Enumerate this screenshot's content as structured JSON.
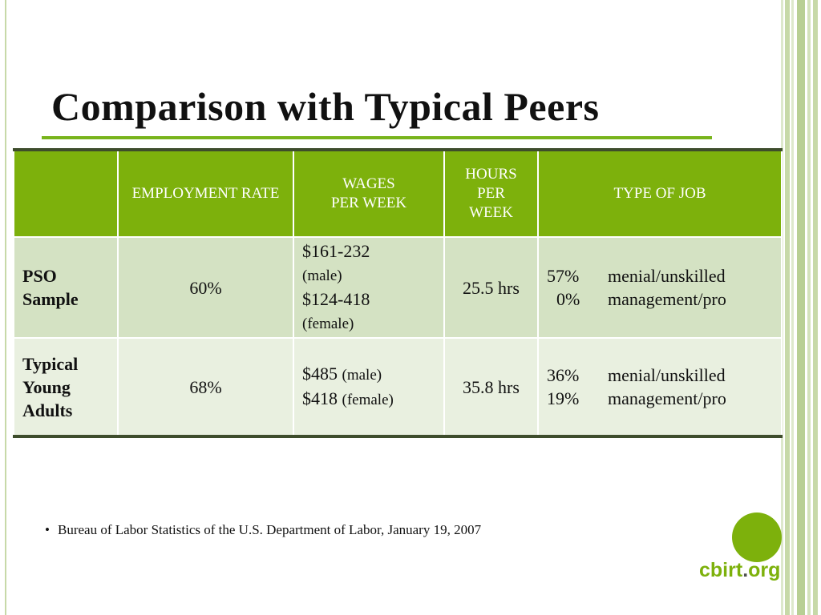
{
  "slide": {
    "title": "Comparison with Typical Peers"
  },
  "table": {
    "headers": [
      "",
      "EMPLOYMENT RATE",
      "WAGES\nPER WEEK",
      "HOURS\nPER\nWEEK",
      "TYPE OF JOB"
    ],
    "rows": [
      {
        "label": "PSO Sample",
        "employment_rate": "60%",
        "wages": [
          {
            "amount": "$161-232",
            "note": "(male)"
          },
          {
            "amount": "$124-418",
            "note": "(female)"
          }
        ],
        "hours": "25.5 hrs",
        "jobs": [
          {
            "pct": "57%",
            "type": "menial/unskilled"
          },
          {
            "pct": "0%",
            "type": "management/pro"
          }
        ]
      },
      {
        "label": "Typical Young Adults",
        "employment_rate": "68%",
        "wages": [
          {
            "amount": "$485",
            "note": "(male)"
          },
          {
            "amount": "$418",
            "note": "(female)"
          }
        ],
        "hours": "35.8 hrs",
        "jobs": [
          {
            "pct": "36%",
            "type": "menial/unskilled"
          },
          {
            "pct": "19%",
            "type": "management/pro"
          }
        ]
      }
    ]
  },
  "footnote": {
    "bullet": "•",
    "text": "Bureau of Labor Statistics of the U.S. Department of Labor, January 19, 2007"
  },
  "logo": {
    "part1": "cbirt",
    "dot": ".",
    "part2": "org"
  },
  "colors": {
    "accent_green": "#7db10c",
    "header_green": "#7db10c",
    "row_shade_dark": "#d4e2c3",
    "row_shade_light": "#e9f0e0",
    "table_border": "#3e4d2c",
    "side_stripes": "#c7d9a8"
  }
}
